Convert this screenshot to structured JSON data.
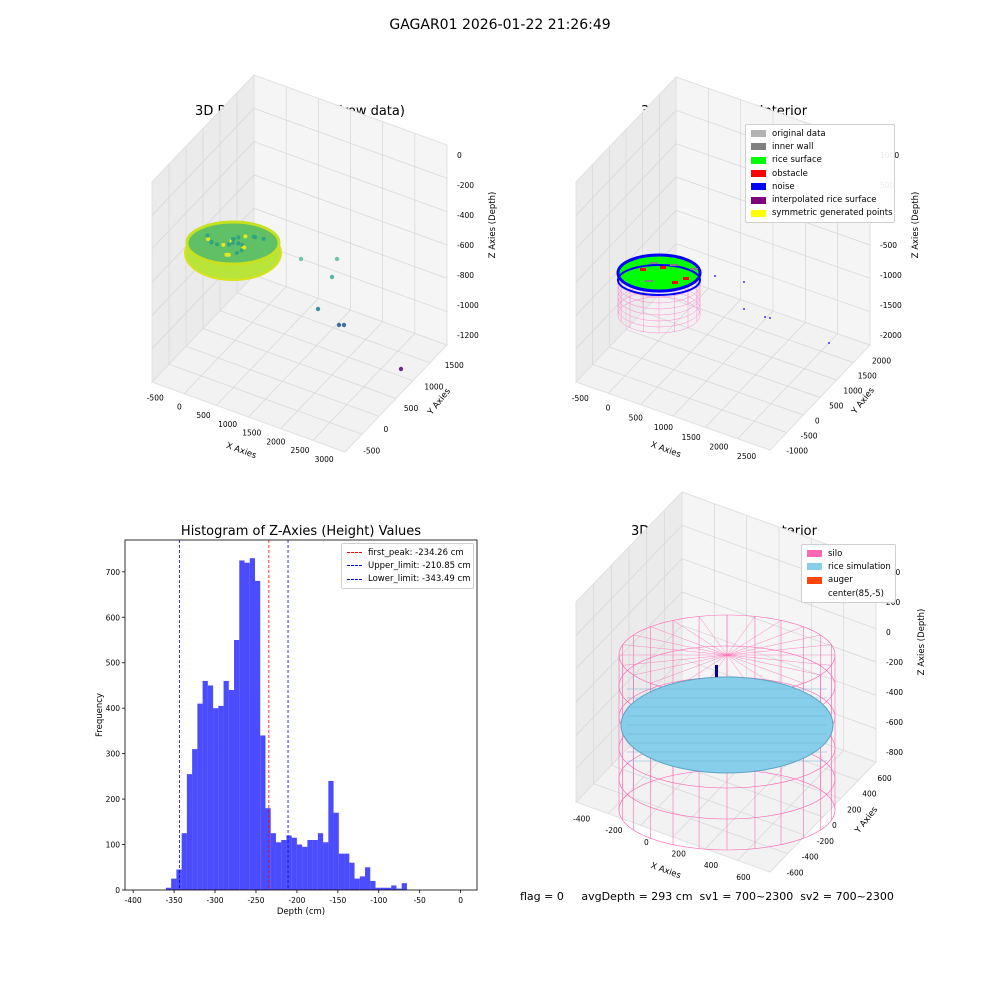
{
  "figure": {
    "suptitle": "GAGAR01 2026-01-22 21:26:49",
    "footer": "flag = 0     avgDepth = 293 cm  sv1 = 700~2300  sv2 = 700~2300"
  },
  "panels": {
    "raw": {
      "title": "3D Plot of Silo Interior(row data)",
      "xlabel": "X Axies",
      "ylabel": "Y Axies",
      "zlabel": "Z Axies (Depth)",
      "xticks": [
        "-500",
        "0",
        "500",
        "1000",
        "1500",
        "2000",
        "2500",
        "3000"
      ],
      "yticks": [
        "-500",
        "0",
        "500",
        "1000",
        "1500"
      ],
      "zticks": [
        "0",
        "-200",
        "-400",
        "-600",
        "-800",
        "-1000",
        "-1200"
      ]
    },
    "classify": {
      "title": "3D classify of Silo Interior",
      "xlabel": "X Axies",
      "ylabel": "Y Axies",
      "zlabel": "Z Axies (Depth)",
      "xticks": [
        "-500",
        "0",
        "500",
        "1000",
        "1500",
        "2000",
        "2500"
      ],
      "yticks": [
        "-1000",
        "-500",
        "0",
        "500",
        "1000",
        "1500",
        "2000"
      ],
      "zticks": [
        "1000",
        "500",
        "0",
        "-500",
        "-1000",
        "-1500",
        "-2000"
      ],
      "legend": [
        {
          "label": "original data",
          "color": "#b3b3b3"
        },
        {
          "label": "inner wall",
          "color": "#808080"
        },
        {
          "label": "rice surface",
          "color": "#00ff00"
        },
        {
          "label": "obstacle",
          "color": "#ff0000"
        },
        {
          "label": "noise",
          "color": "#0000ff"
        },
        {
          "label": "interpolated rice surface",
          "color": "#800080"
        },
        {
          "label": "symmetric generated points",
          "color": "#ffff00"
        }
      ]
    },
    "simulation": {
      "title": "3D simulation of Silo Interior",
      "xlabel": "X Axies",
      "ylabel": "Y Axies",
      "zlabel": "Z Axies (Depth)",
      "xticks": [
        "-400",
        "-200",
        "0",
        "200",
        "400",
        "600"
      ],
      "yticks": [
        "-600",
        "-400",
        "-200",
        "0",
        "200",
        "400",
        "600"
      ],
      "zticks": [
        "400",
        "200",
        "0",
        "-200",
        "-400",
        "-600",
        "-800"
      ],
      "legend": [
        {
          "label": "silo",
          "color": "#ff69b4"
        },
        {
          "label": "rice simulation",
          "color": "#87ceeb"
        },
        {
          "label": "auger",
          "color": "#ff4500"
        },
        {
          "label": "center(85,-5)",
          "color": "#ffffff"
        }
      ]
    }
  },
  "chart_data": [
    {
      "type": "bar",
      "title": "Histogram of Z-Axies (Height) Values",
      "xlabel": "Depth (cm)",
      "ylabel": "Frequency",
      "xlim": [
        -410,
        20
      ],
      "ylim": [
        0,
        770
      ],
      "xticks": [
        -400,
        -350,
        -300,
        -250,
        -200,
        -150,
        -100,
        -50,
        0
      ],
      "yticks": [
        0,
        100,
        200,
        300,
        400,
        500,
        600,
        700
      ],
      "bins": {
        "start": -360,
        "width": 6.4,
        "values": [
          5,
          25,
          45,
          125,
          255,
          310,
          410,
          460,
          450,
          400,
          405,
          460,
          440,
          550,
          725,
          720,
          730,
          680,
          340,
          180,
          125,
          105,
          110,
          120,
          115,
          100,
          95,
          110,
          110,
          125,
          105,
          240,
          170,
          80,
          80,
          60,
          25,
          30,
          50,
          20,
          5,
          5,
          5,
          10,
          3,
          15
        ]
      },
      "bar_color": "#0000ff",
      "lines": [
        {
          "label": "first_peak: -234.26 cm",
          "x": -234.26,
          "color": "#ff0000"
        },
        {
          "label": "Upper_limit: -210.85 cm",
          "x": -210.85,
          "color": "#0000ff"
        },
        {
          "label": "Lower_limit: -343.49 cm",
          "x": -343.49,
          "color": "#0000ff"
        }
      ],
      "legend_position": "upper right"
    }
  ]
}
